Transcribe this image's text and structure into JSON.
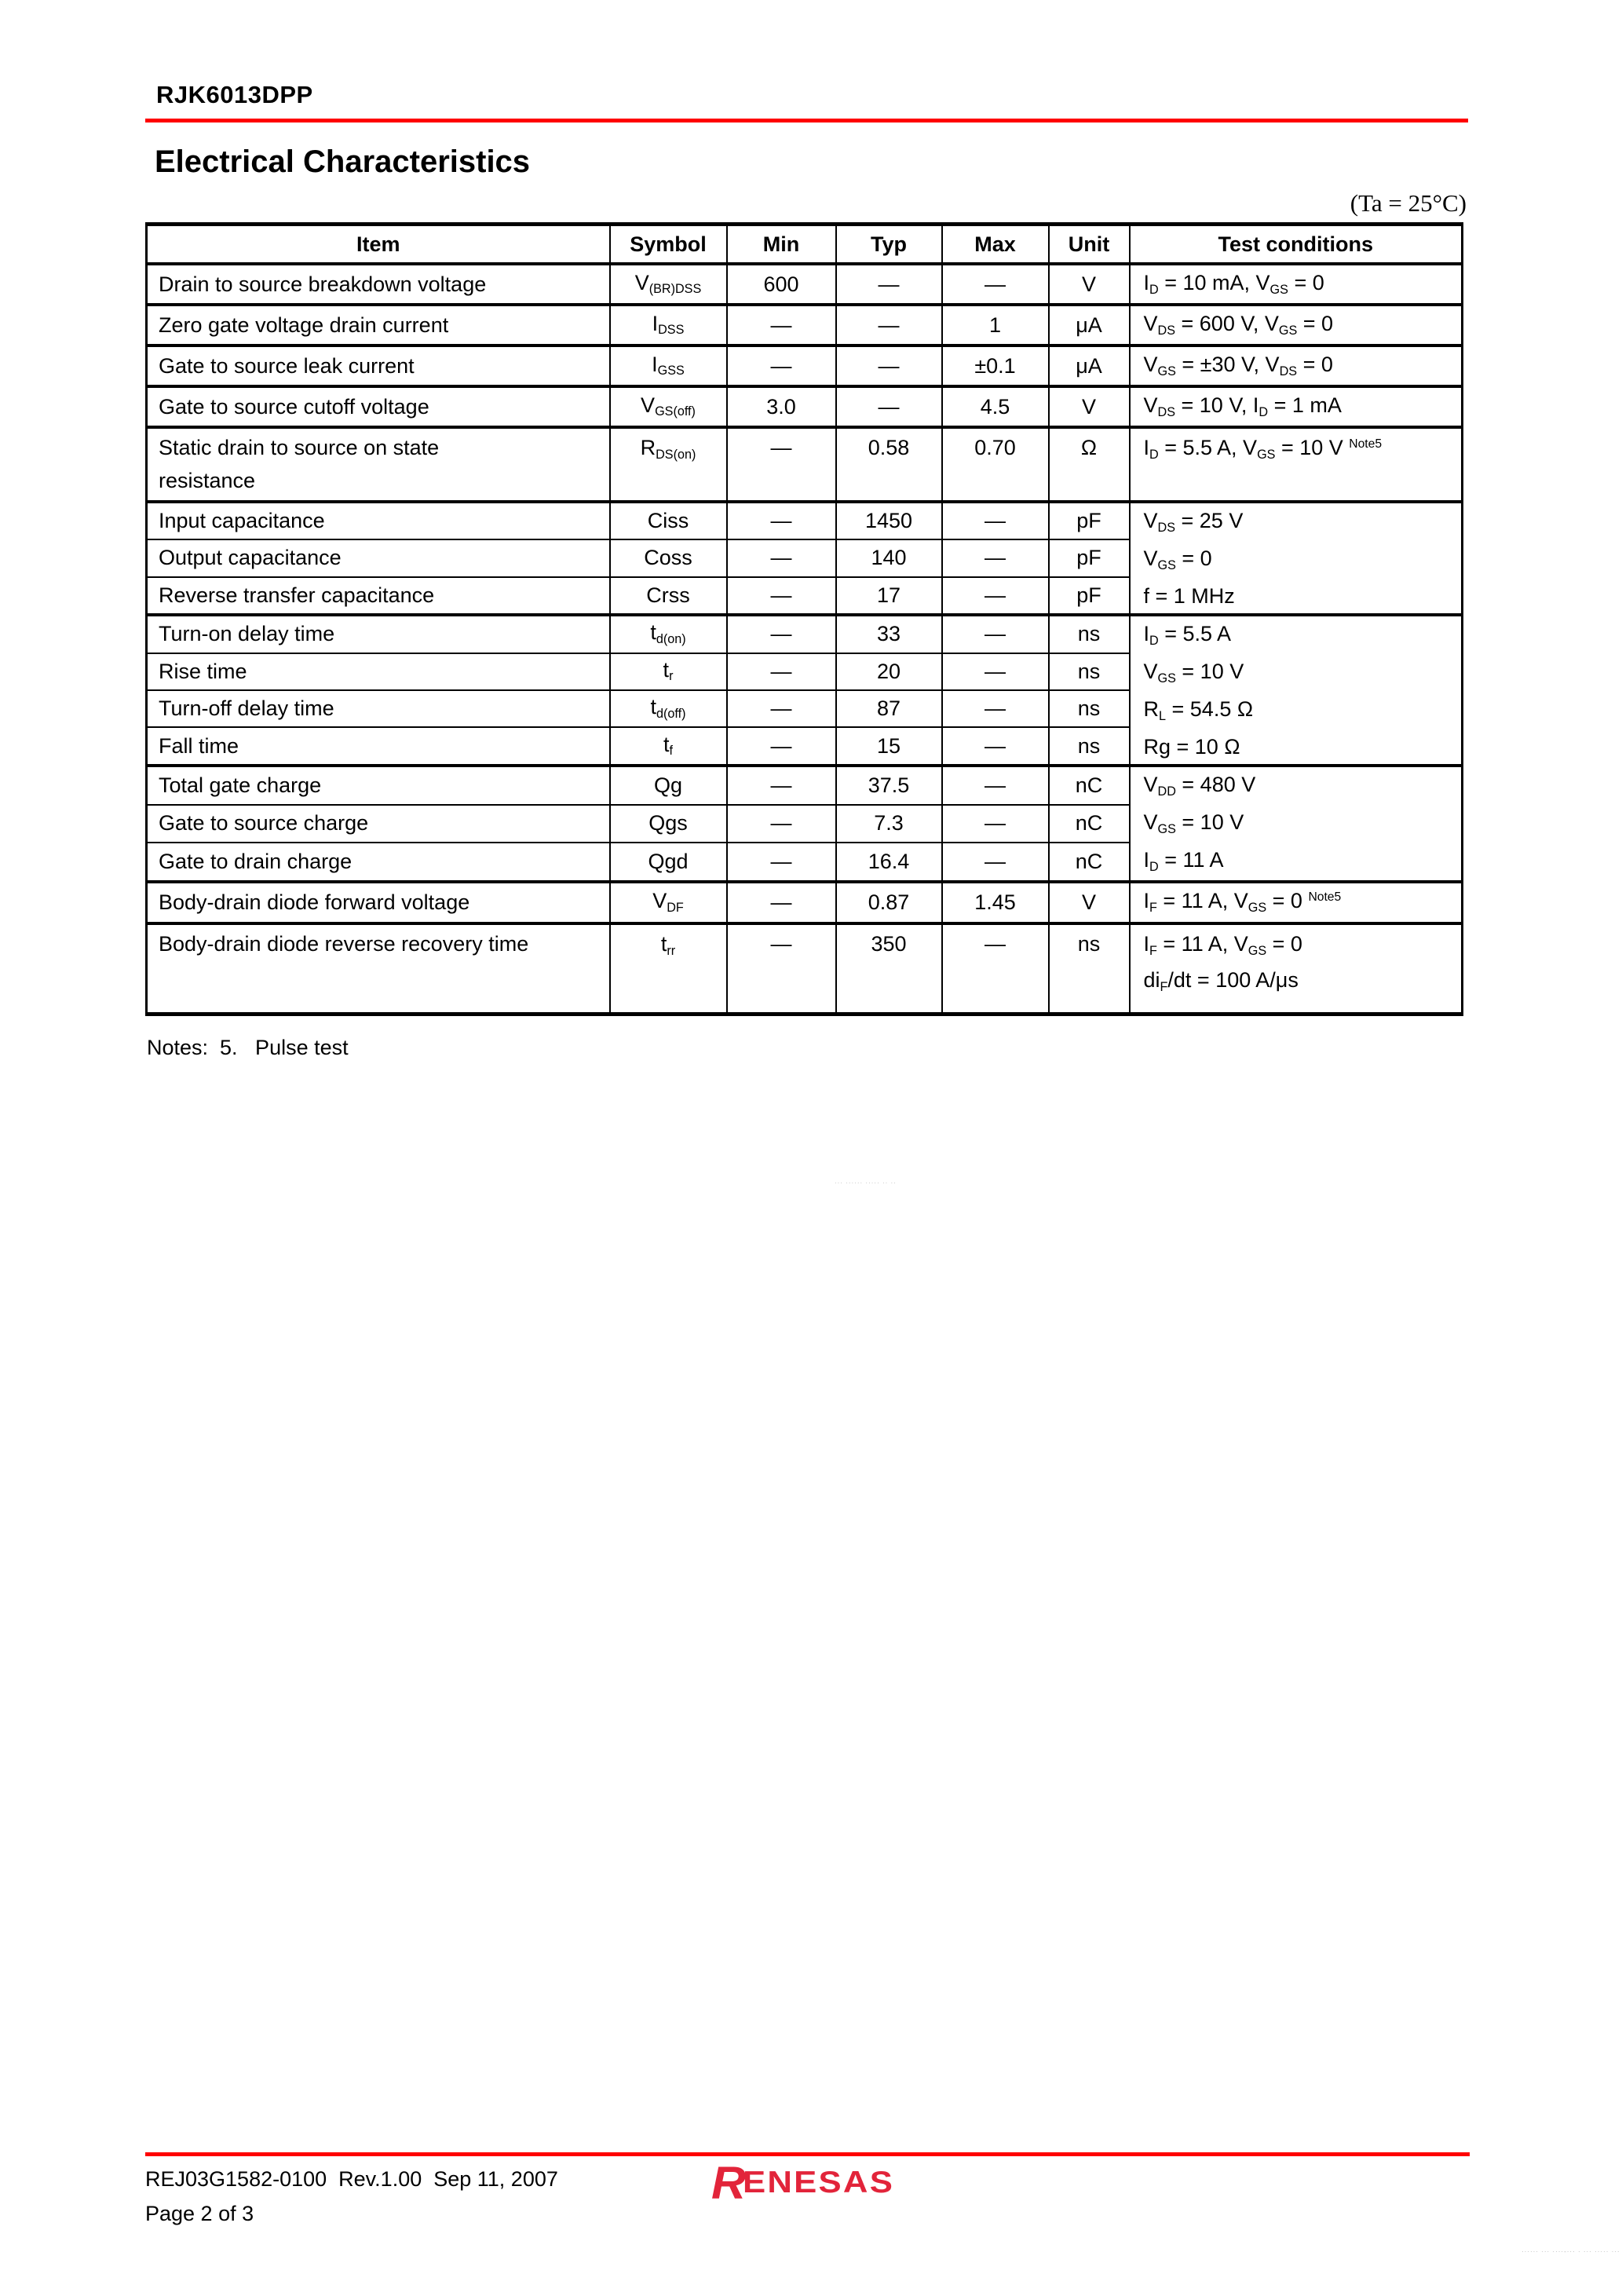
{
  "page": {
    "part_number": "RJK6013DPP",
    "section_title": "Electrical Characteristics",
    "temperature_note": "(Ta = 25°C)",
    "footnote": "Notes:  5.   Pulse test"
  },
  "colors": {
    "accent_red": "#ff0000",
    "logo_red": "#e2243a"
  },
  "table": {
    "columns": [
      "Item",
      "Symbol",
      "Min",
      "Typ",
      "Max",
      "Unit",
      "Test conditions"
    ],
    "rows": [
      {
        "item": "Drain to source breakdown voltage",
        "symbol": "V~(BR)DSS~",
        "min": "600",
        "typ": "—",
        "max": "—",
        "unit": "V",
        "cond": [
          "I~D~ = 10 mA, V~GS~ = 0"
        ],
        "cond_span": 1,
        "group_start": true
      },
      {
        "item": "Zero gate voltage drain current",
        "symbol": "I~DSS~",
        "min": "—",
        "typ": "—",
        "max": "1",
        "unit": "μA",
        "cond": [
          "V~DS~ = 600 V, V~GS~ = 0"
        ],
        "cond_span": 1,
        "group_start": true
      },
      {
        "item": "Gate to source leak current",
        "symbol": "I~GSS~",
        "min": "—",
        "typ": "—",
        "max": "±0.1",
        "unit": "μA",
        "cond": [
          "V~GS~ = ±30 V, V~DS~ = 0"
        ],
        "cond_span": 1,
        "group_start": true
      },
      {
        "item": "Gate to source cutoff voltage",
        "symbol": "V~GS(off)~",
        "min": "3.0",
        "typ": "—",
        "max": "4.5",
        "unit": "V",
        "cond": [
          "V~DS~ = 10 V, I~D~ = 1 mA"
        ],
        "cond_span": 1,
        "group_start": true
      },
      {
        "item": "Static drain to source on state\nresistance",
        "symbol": "R~DS(on)~",
        "min": "—",
        "typ": "0.58",
        "max": "0.70",
        "unit": "Ω",
        "cond": [
          "I~D~ = 5.5 A, V~GS~ = 10 V ^Note5^"
        ],
        "cond_span": 1,
        "group_start": true,
        "tall": true
      },
      {
        "item": "Input capacitance",
        "symbol": "Ciss",
        "min": "—",
        "typ": "1450",
        "max": "—",
        "unit": "pF",
        "cond": [
          "V~DS~ = 25 V",
          "V~GS~ = 0",
          "f = 1 MHz"
        ],
        "cond_span": 3,
        "group_start": true
      },
      {
        "item": "Output capacitance",
        "symbol": "Coss",
        "min": "—",
        "typ": "140",
        "max": "—",
        "unit": "pF"
      },
      {
        "item": "Reverse transfer capacitance",
        "symbol": "Crss",
        "min": "—",
        "typ": "17",
        "max": "—",
        "unit": "pF"
      },
      {
        "item": "Turn-on delay time",
        "symbol": "t~d(on)~",
        "min": "—",
        "typ": "33",
        "max": "—",
        "unit": "ns",
        "cond": [
          "I~D~ = 5.5 A",
          "V~GS~ = 10 V",
          "R~L~ = 54.5 Ω",
          "Rg = 10 Ω"
        ],
        "cond_span": 4,
        "group_start": true
      },
      {
        "item": "Rise time",
        "symbol": "t~r~",
        "min": "—",
        "typ": "20",
        "max": "—",
        "unit": "ns"
      },
      {
        "item": "Turn-off delay time",
        "symbol": "t~d(off)~",
        "min": "—",
        "typ": "87",
        "max": "—",
        "unit": "ns"
      },
      {
        "item": "Fall time",
        "symbol": "t~f~",
        "min": "—",
        "typ": "15",
        "max": "—",
        "unit": "ns"
      },
      {
        "item": "Total gate charge",
        "symbol": "Qg",
        "min": "—",
        "typ": "37.5",
        "max": "—",
        "unit": "nC",
        "cond": [
          "V~DD~ = 480 V",
          "V~GS~ = 10 V",
          "I~D~ = 11 A"
        ],
        "cond_span": 3,
        "group_start": true
      },
      {
        "item": "Gate to source charge",
        "symbol": "Qgs",
        "min": "—",
        "typ": "7.3",
        "max": "—",
        "unit": "nC"
      },
      {
        "item": "Gate to drain charge",
        "symbol": "Qgd",
        "min": "—",
        "typ": "16.4",
        "max": "—",
        "unit": "nC"
      },
      {
        "item": "Body-drain diode forward voltage",
        "symbol": "V~DF~",
        "min": "—",
        "typ": "0.87",
        "max": "1.45",
        "unit": "V",
        "cond": [
          "I~F~ = 11 A, V~GS~ = 0 ^Note5^"
        ],
        "cond_span": 1,
        "group_start": true
      },
      {
        "item": "Body-drain diode reverse recovery time",
        "symbol": "t~rr~",
        "min": "—",
        "typ": "350",
        "max": "—",
        "unit": "ns",
        "cond": [
          "I~F~ = 11 A, V~GS~ = 0",
          "di~F~/dt = 100 A/μs"
        ],
        "cond_span": 1,
        "group_start": true,
        "tall2": true
      }
    ]
  },
  "watermarks": {
    "center": "··· ······ ····· ·· ··",
    "bottom_right": "······ ··· ····-··· · ··· ····· ···"
  },
  "footer": {
    "document_code": "REJ03G1582-0100  Rev.1.00  Sep 11, 2007",
    "page_number": "Page 2 of 3",
    "logo_text": "RENESAS"
  }
}
